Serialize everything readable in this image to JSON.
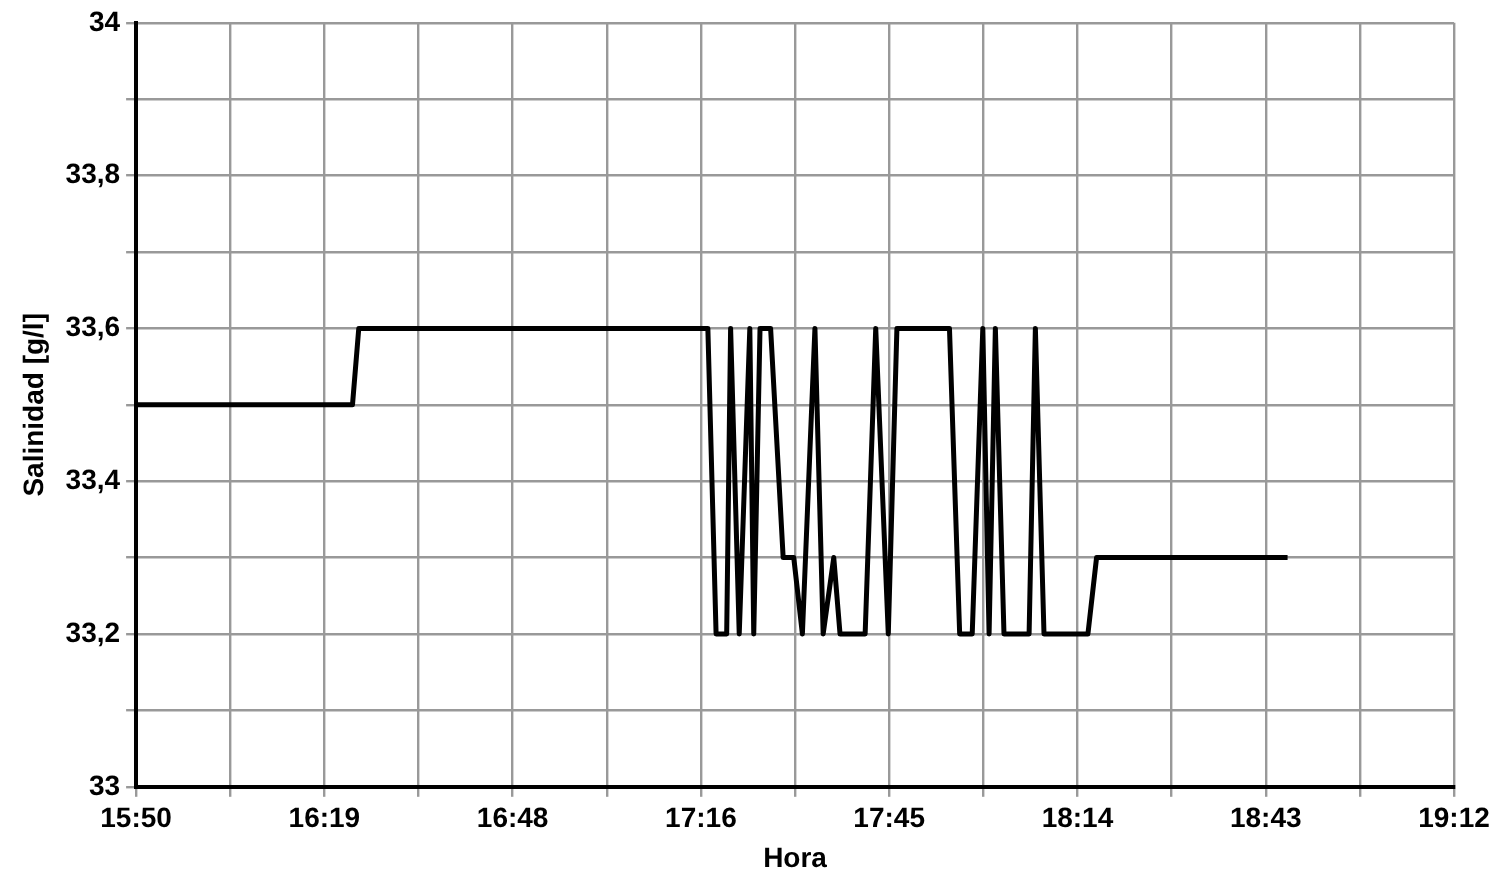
{
  "chart_data": {
    "type": "line",
    "xlabel": "Hora",
    "ylabel": "Salinidad [g/l]",
    "x": [
      15.8333,
      16.385,
      16.401,
      17.291,
      17.312,
      17.339,
      17.349,
      17.371,
      17.398,
      17.408,
      17.424,
      17.451,
      17.483,
      17.51,
      17.532,
      17.564,
      17.585,
      17.612,
      17.628,
      17.692,
      17.719,
      17.751,
      17.773,
      17.907,
      17.933,
      17.965,
      17.992,
      18.008,
      18.024,
      18.046,
      18.067,
      18.11,
      18.126,
      18.148,
      18.26,
      18.282,
      18.769
    ],
    "series": [
      {
        "color": "#000000",
        "values": [
          33.5,
          33.5,
          33.6,
          33.6,
          33.2,
          33.2,
          33.6,
          33.2,
          33.6,
          33.2,
          33.6,
          33.6,
          33.3,
          33.3,
          33.2,
          33.6,
          33.2,
          33.3,
          33.2,
          33.2,
          33.6,
          33.2,
          33.6,
          33.6,
          33.2,
          33.2,
          33.6,
          33.2,
          33.6,
          33.2,
          33.2,
          33.2,
          33.6,
          33.2,
          33.2,
          33.3,
          33.3
        ]
      }
    ],
    "xlim": [
      15.8333,
      19.1933
    ],
    "xticks": [
      {
        "value": 15.8333,
        "label": "15:50"
      },
      {
        "value": 16.0733,
        "label": null
      },
      {
        "value": 16.3133,
        "label": "16:19"
      },
      {
        "value": 16.5533,
        "label": null
      },
      {
        "value": 16.7933,
        "label": "16:48"
      },
      {
        "value": 17.0333,
        "label": null
      },
      {
        "value": 17.2733,
        "label": "17:16"
      },
      {
        "value": 17.5133,
        "label": null
      },
      {
        "value": 17.7533,
        "label": "17:45"
      },
      {
        "value": 17.9933,
        "label": null
      },
      {
        "value": 18.2333,
        "label": "18:14"
      },
      {
        "value": 18.4733,
        "label": null
      },
      {
        "value": 18.7133,
        "label": "18:43"
      },
      {
        "value": 18.9533,
        "label": null
      },
      {
        "value": 19.1933,
        "label": "19:12"
      }
    ],
    "ylim": [
      33,
      34
    ],
    "yticks": [
      33,
      {
        "value": 33.1,
        "label": null
      },
      {
        "value": 33.2,
        "label": "33,2"
      },
      {
        "value": 33.3,
        "label": null
      },
      {
        "value": 33.4,
        "label": "33,4"
      },
      {
        "value": 33.5,
        "label": null
      },
      {
        "value": 33.6,
        "label": "33,6"
      },
      {
        "value": 33.7,
        "label": null
      },
      {
        "value": 33.8,
        "label": "33,8"
      },
      {
        "value": 33.9,
        "label": null
      },
      34
    ],
    "grid": true,
    "legend": false,
    "marker": "none",
    "line_style": "solid"
  }
}
